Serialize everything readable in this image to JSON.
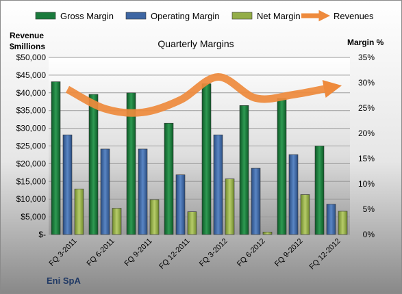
{
  "chart_data": {
    "type": "bar",
    "title": "Quarterly Margins",
    "company_label": "Eni SpA",
    "left_axis_label": [
      "Revenue",
      "$millions"
    ],
    "right_axis_label": "Margin %",
    "categories": [
      "FQ 3-2011",
      "FQ 6-2011",
      "FQ 9-2011",
      "FQ 12-2011",
      "FQ 3-2012",
      "FQ 6-2012",
      "FQ 9-2012",
      "FQ 12-2012"
    ],
    "series": [
      {
        "name": "Gross Margin",
        "type": "bar",
        "axis": "right",
        "color": "#1a7a3c",
        "values": [
          30.2,
          27.7,
          28.0,
          22.0,
          29.8,
          25.5,
          26.9,
          17.5
        ]
      },
      {
        "name": "Operating Margin",
        "type": "bar",
        "axis": "right",
        "color": "#3e66a3",
        "values": [
          19.7,
          16.9,
          16.9,
          11.8,
          19.7,
          13.1,
          15.8,
          6.0
        ]
      },
      {
        "name": "Net Margin",
        "type": "bar",
        "axis": "right",
        "color": "#93ad48",
        "values": [
          9.0,
          5.2,
          6.9,
          4.5,
          11.0,
          0.5,
          7.9,
          4.6
        ]
      },
      {
        "name": "Revenues",
        "type": "line",
        "axis": "left",
        "color": "#ee8a3c",
        "values": [
          41000,
          35500,
          34500,
          38000,
          44500,
          38500,
          39500,
          41500
        ]
      }
    ],
    "left_axis": {
      "min": 0,
      "max": 50000,
      "step": 5000,
      "tick_labels": [
        "$-",
        "$5,000",
        "$10,000",
        "$15,000",
        "$20,000",
        "$25,000",
        "$30,000",
        "$35,000",
        "$40,000",
        "$45,000",
        "$50,000"
      ]
    },
    "right_axis": {
      "min": 0,
      "max": 35,
      "step": 5,
      "tick_labels": [
        "0%",
        "5%",
        "10%",
        "15%",
        "20%",
        "25%",
        "30%",
        "35%"
      ]
    },
    "grid": true,
    "legend_position": "top"
  }
}
